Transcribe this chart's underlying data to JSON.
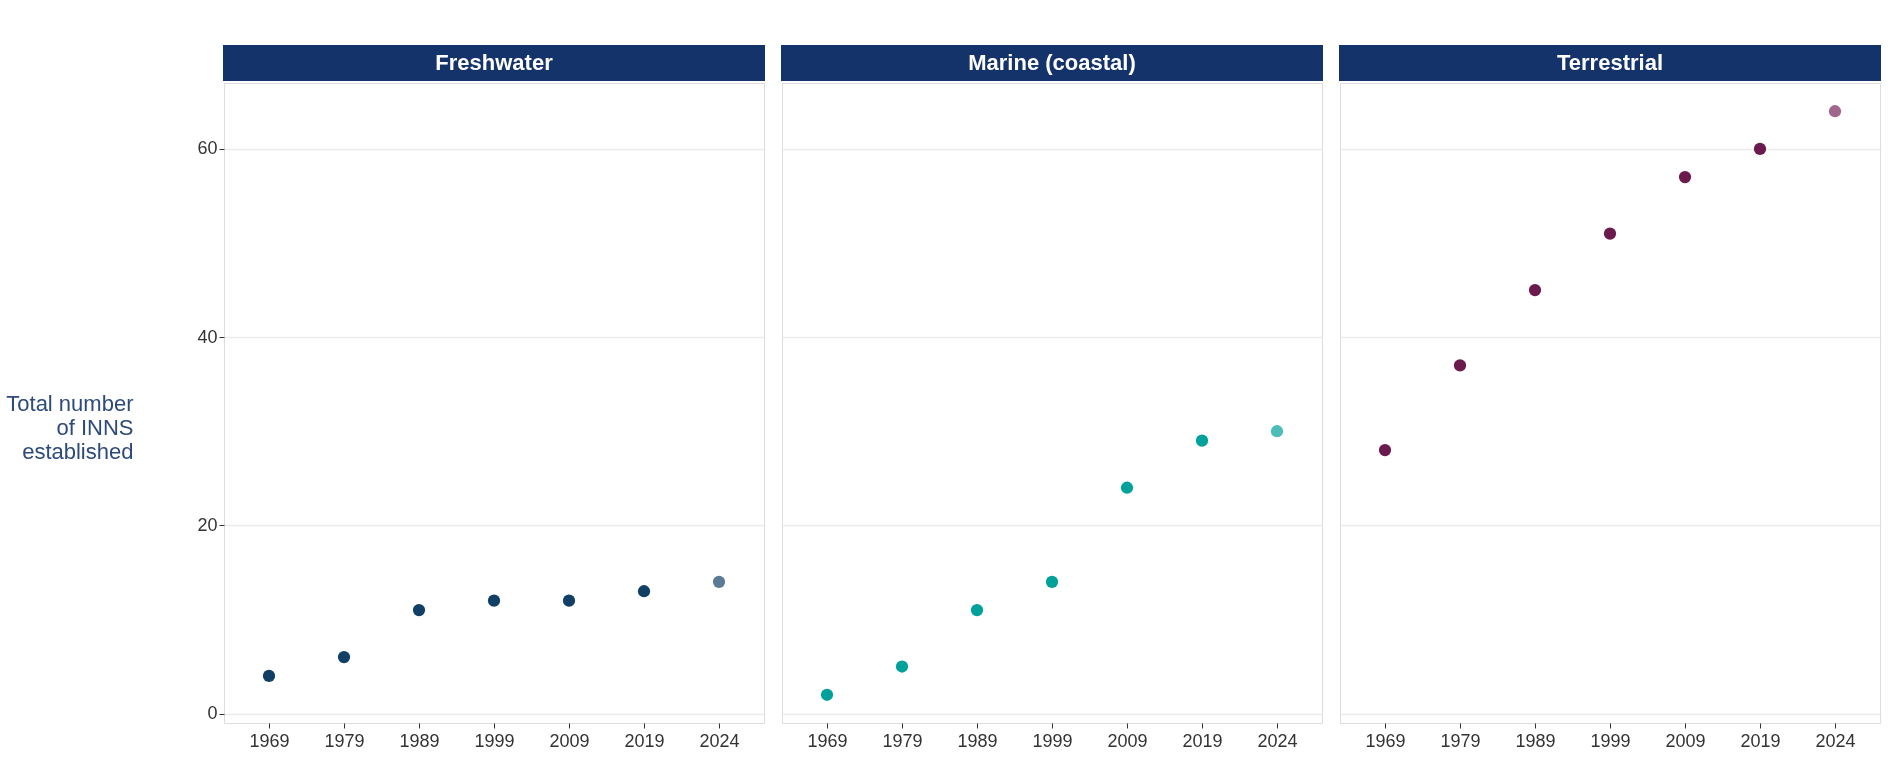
{
  "chart_data": [
    {
      "type": "scatter",
      "title": "Freshwater",
      "ylabel": "Total number of INNS established",
      "categories": [
        "1969",
        "1979",
        "1989",
        "1999",
        "2009",
        "2019",
        "2024"
      ],
      "values": [
        4,
        6,
        11,
        12,
        12,
        13,
        14
      ],
      "colors": [
        "#123f66",
        "#123f66",
        "#123f66",
        "#123f66",
        "#123f66",
        "#123f66",
        "#5a7a96"
      ],
      "ylim": [
        -1,
        67
      ],
      "yticks": [
        0,
        20,
        40,
        60
      ],
      "grid": "y",
      "marker": "circle"
    },
    {
      "type": "scatter",
      "title": "Marine (coastal)",
      "categories": [
        "1969",
        "1979",
        "1989",
        "1999",
        "2009",
        "2019",
        "2024"
      ],
      "values": [
        2,
        5,
        11,
        14,
        24,
        29,
        30
      ],
      "colors": [
        "#00a19a",
        "#00a19a",
        "#00a19a",
        "#00a19a",
        "#00a19a",
        "#00a19a",
        "#4dbdb7"
      ],
      "ylim": [
        -1,
        67
      ],
      "yticks": [
        0,
        20,
        40,
        60
      ],
      "grid": "y",
      "marker": "circle",
      "tick_labels": "x"
    },
    {
      "type": "scatter",
      "title": "Terrestrial",
      "categories": [
        "1969",
        "1979",
        "1989",
        "1999",
        "2009",
        "2019",
        "2024"
      ],
      "values": [
        28,
        37,
        45,
        51,
        57,
        60,
        64
      ],
      "colors": [
        "#6b1a4e",
        "#6b1a4e",
        "#6b1a4e",
        "#6b1a4e",
        "#6b1a4e",
        "#6b1a4e",
        "#a0668b"
      ],
      "ylim": [
        -1,
        67
      ],
      "yticks": [
        0,
        20,
        40,
        60
      ],
      "grid": "y",
      "marker": "circle",
      "tick_labels": "x"
    }
  ]
}
